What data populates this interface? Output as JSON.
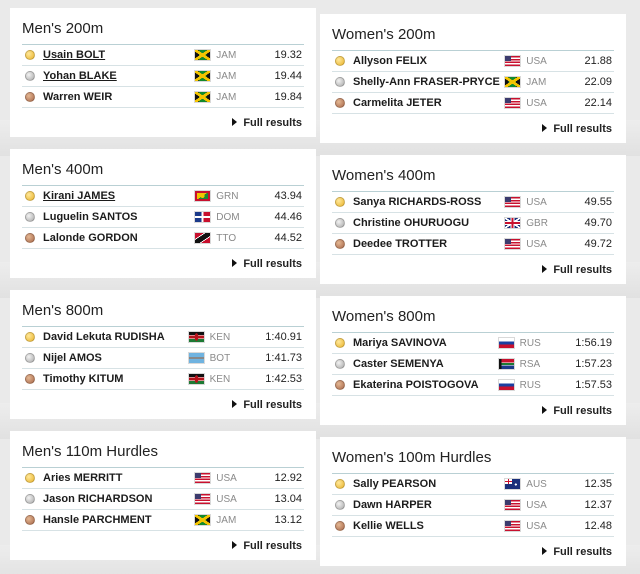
{
  "full_results_label": "Full results",
  "events": [
    {
      "title": "Men's 200m",
      "results": [
        {
          "medal": "gold",
          "name": "Usain BOLT",
          "flag": "jamaica-flag-icon",
          "country": "JAM",
          "time": "19.32"
        },
        {
          "medal": "silver",
          "name": "Yohan BLAKE",
          "flag": "jamaica-flag-icon",
          "country": "JAM",
          "time": "19.44"
        },
        {
          "medal": "bronze",
          "name": "Warren WEIR",
          "flag": "jamaica-flag-icon",
          "country": "JAM",
          "time": "19.84"
        }
      ]
    },
    {
      "title": "Women's 200m",
      "results": [
        {
          "medal": "gold",
          "name": "Allyson FELIX",
          "flag": "usa-flag-icon",
          "country": "USA",
          "time": "21.88"
        },
        {
          "medal": "silver",
          "name": "Shelly-Ann FRASER-PRYCE",
          "flag": "jamaica-flag-icon",
          "country": "JAM",
          "time": "22.09"
        },
        {
          "medal": "bronze",
          "name": "Carmelita JETER",
          "flag": "usa-flag-icon",
          "country": "USA",
          "time": "22.14"
        }
      ]
    },
    {
      "title": "Men's 400m",
      "results": [
        {
          "medal": "gold",
          "name": "Kirani JAMES",
          "flag": "grenada-flag-icon",
          "country": "GRN",
          "time": "43.94"
        },
        {
          "medal": "silver",
          "name": "Luguelin SANTOS",
          "flag": "dominican-republic-flag-icon",
          "country": "DOM",
          "time": "44.46"
        },
        {
          "medal": "bronze",
          "name": "Lalonde GORDON",
          "flag": "trinidad-tobago-flag-icon",
          "country": "TTO",
          "time": "44.52"
        }
      ]
    },
    {
      "title": "Women's 400m",
      "results": [
        {
          "medal": "gold",
          "name": "Sanya RICHARDS-ROSS",
          "flag": "usa-flag-icon",
          "country": "USA",
          "time": "49.55"
        },
        {
          "medal": "silver",
          "name": "Christine OHURUOGU",
          "flag": "great-britain-flag-icon",
          "country": "GBR",
          "time": "49.70"
        },
        {
          "medal": "bronze",
          "name": "Deedee TROTTER",
          "flag": "usa-flag-icon",
          "country": "USA",
          "time": "49.72"
        }
      ]
    },
    {
      "title": "Men's 800m",
      "results": [
        {
          "medal": "gold",
          "name": "David Lekuta RUDISHA",
          "flag": "kenya-flag-icon",
          "country": "KEN",
          "time": "1:40.91"
        },
        {
          "medal": "silver",
          "name": "Nijel AMOS",
          "flag": "botswana-flag-icon",
          "country": "BOT",
          "time": "1:41.73"
        },
        {
          "medal": "bronze",
          "name": "Timothy KITUM",
          "flag": "kenya-flag-icon",
          "country": "KEN",
          "time": "1:42.53"
        }
      ]
    },
    {
      "title": "Women's 800m",
      "results": [
        {
          "medal": "gold",
          "name": "Mariya SAVINOVA",
          "flag": "russia-flag-icon",
          "country": "RUS",
          "time": "1:56.19"
        },
        {
          "medal": "silver",
          "name": "Caster SEMENYA",
          "flag": "south-africa-flag-icon",
          "country": "RSA",
          "time": "1:57.23"
        },
        {
          "medal": "bronze",
          "name": "Ekaterina POISTOGOVA",
          "flag": "russia-flag-icon",
          "country": "RUS",
          "time": "1:57.53"
        }
      ]
    },
    {
      "title": "Men's 110m Hurdles",
      "results": [
        {
          "medal": "gold",
          "name": "Aries MERRITT",
          "flag": "usa-flag-icon",
          "country": "USA",
          "time": "12.92"
        },
        {
          "medal": "silver",
          "name": "Jason RICHARDSON",
          "flag": "usa-flag-icon",
          "country": "USA",
          "time": "13.04"
        },
        {
          "medal": "bronze",
          "name": "Hansle PARCHMENT",
          "flag": "jamaica-flag-icon",
          "country": "JAM",
          "time": "13.12"
        }
      ]
    },
    {
      "title": "Women's 100m Hurdles",
      "results": [
        {
          "medal": "gold",
          "name": "Sally PEARSON",
          "flag": "australia-flag-icon",
          "country": "AUS",
          "time": "12.35"
        },
        {
          "medal": "silver",
          "name": "Dawn HARPER",
          "flag": "usa-flag-icon",
          "country": "USA",
          "time": "12.37"
        },
        {
          "medal": "bronze",
          "name": "Kellie WELLS",
          "flag": "usa-flag-icon",
          "country": "USA",
          "time": "12.48"
        }
      ]
    }
  ]
}
